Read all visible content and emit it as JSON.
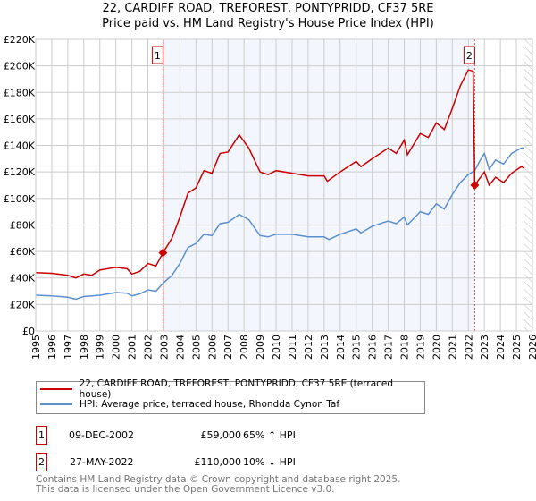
{
  "chart_data": {
    "type": "line",
    "title": "22, CARDIFF ROAD, TREFOREST, PONTYPRIDD, CF37 5RE",
    "subtitle": "Price paid vs. HM Land Registry's House Price Index (HPI)",
    "xlim": [
      1995,
      2026
    ],
    "ylim": [
      0,
      220000
    ],
    "x_ticks": [
      "1995",
      "1996",
      "1997",
      "1998",
      "1999",
      "2000",
      "2001",
      "2002",
      "2003",
      "2004",
      "2005",
      "2006",
      "2007",
      "2008",
      "2009",
      "2010",
      "2011",
      "2012",
      "2013",
      "2014",
      "2015",
      "2016",
      "2017",
      "2018",
      "2019",
      "2020",
      "2021",
      "2022",
      "2023",
      "2024",
      "2025",
      "2026"
    ],
    "y_ticks": [
      "£0",
      "£20K",
      "£40K",
      "£60K",
      "£80K",
      "£100K",
      "£120K",
      "£140K",
      "£160K",
      "£180K",
      "£200K",
      "£220K"
    ],
    "grid": true,
    "shaded_range": [
      2002.94,
      2022.4
    ],
    "hatched_from": 2025.5,
    "series": [
      {
        "name": "22, CARDIFF ROAD, TREFOREST, PONTYPRIDD, CF37 5RE (terraced house)",
        "color": "#cc0000",
        "points": [
          [
            1995,
            44
          ],
          [
            1996,
            43.5
          ],
          [
            1997,
            42
          ],
          [
            1997.5,
            40
          ],
          [
            1998,
            43
          ],
          [
            1998.5,
            42
          ],
          [
            1999,
            46
          ],
          [
            2000,
            48
          ],
          [
            2000.7,
            47
          ],
          [
            2001,
            43
          ],
          [
            2001.5,
            45
          ],
          [
            2002,
            51
          ],
          [
            2002.5,
            49
          ],
          [
            2002.94,
            59
          ],
          [
            2003.5,
            70
          ],
          [
            2004,
            86
          ],
          [
            2004.5,
            104
          ],
          [
            2005,
            108
          ],
          [
            2005.5,
            121
          ],
          [
            2006,
            119
          ],
          [
            2006.5,
            134
          ],
          [
            2007,
            135
          ],
          [
            2007.7,
            148
          ],
          [
            2008.3,
            138
          ],
          [
            2009,
            120
          ],
          [
            2009.5,
            118
          ],
          [
            2010,
            121
          ],
          [
            2011,
            119
          ],
          [
            2012,
            117
          ],
          [
            2013,
            117
          ],
          [
            2013.2,
            113
          ],
          [
            2014,
            120
          ],
          [
            2015,
            128
          ],
          [
            2015.3,
            124
          ],
          [
            2016,
            130
          ],
          [
            2017,
            138
          ],
          [
            2017.5,
            134
          ],
          [
            2018,
            144
          ],
          [
            2018.2,
            133
          ],
          [
            2019,
            149
          ],
          [
            2019.5,
            146
          ],
          [
            2020,
            157
          ],
          [
            2020.5,
            152
          ],
          [
            2021,
            168
          ],
          [
            2021.5,
            185
          ],
          [
            2022,
            197
          ],
          [
            2022.3,
            196
          ],
          [
            2022.4,
            110
          ],
          [
            2023,
            120
          ],
          [
            2023.3,
            110
          ],
          [
            2023.7,
            116
          ],
          [
            2024.2,
            112
          ],
          [
            2024.7,
            119
          ],
          [
            2025.3,
            124
          ],
          [
            2025.5,
            123
          ]
        ]
      },
      {
        "name": "HPI: Average price, terraced house, Rhondda Cynon Taf",
        "color": "#5b8fd0",
        "points": [
          [
            1995,
            27
          ],
          [
            1996,
            26.5
          ],
          [
            1997,
            25.5
          ],
          [
            1997.5,
            24
          ],
          [
            1998,
            26
          ],
          [
            1999,
            27
          ],
          [
            2000,
            29
          ],
          [
            2000.7,
            28.5
          ],
          [
            2001,
            26.5
          ],
          [
            2001.5,
            28
          ],
          [
            2002,
            31
          ],
          [
            2002.5,
            30
          ],
          [
            2002.94,
            36
          ],
          [
            2003.5,
            42
          ],
          [
            2004,
            51
          ],
          [
            2004.5,
            63
          ],
          [
            2005,
            66
          ],
          [
            2005.5,
            73
          ],
          [
            2006,
            72
          ],
          [
            2006.5,
            81
          ],
          [
            2007,
            82
          ],
          [
            2007.7,
            88
          ],
          [
            2008.3,
            84
          ],
          [
            2009,
            72
          ],
          [
            2009.5,
            71
          ],
          [
            2010,
            73
          ],
          [
            2011,
            73
          ],
          [
            2012,
            71
          ],
          [
            2013,
            71
          ],
          [
            2013.3,
            69
          ],
          [
            2014,
            73
          ],
          [
            2015,
            77
          ],
          [
            2015.3,
            74
          ],
          [
            2016,
            79
          ],
          [
            2017,
            83
          ],
          [
            2017.5,
            81
          ],
          [
            2018,
            86
          ],
          [
            2018.2,
            80
          ],
          [
            2019,
            90
          ],
          [
            2019.5,
            88
          ],
          [
            2020,
            96
          ],
          [
            2020.5,
            92
          ],
          [
            2021,
            103
          ],
          [
            2021.5,
            112
          ],
          [
            2022,
            118
          ],
          [
            2022.4,
            121
          ],
          [
            2022.7,
            128
          ],
          [
            2023,
            134
          ],
          [
            2023.3,
            122
          ],
          [
            2023.7,
            129
          ],
          [
            2024.2,
            126
          ],
          [
            2024.7,
            134
          ],
          [
            2025.3,
            138
          ],
          [
            2025.5,
            138
          ]
        ]
      }
    ],
    "y_units": "thousands GBP",
    "sales": [
      {
        "label": "1",
        "year": 2002.94,
        "price": 59
      },
      {
        "label": "2",
        "year": 2022.4,
        "price": 110
      }
    ]
  },
  "legend": {
    "red": "22, CARDIFF ROAD, TREFOREST, PONTYPRIDD, CF37 5RE (terraced house)",
    "blue": "HPI: Average price, terraced house, Rhondda Cynon Taf"
  },
  "transactions": [
    {
      "num": "1",
      "date": "09-DEC-2002",
      "price": "£59,000",
      "hpi": "65% ↑ HPI"
    },
    {
      "num": "2",
      "date": "27-MAY-2022",
      "price": "£110,000",
      "hpi": "10% ↓ HPI"
    }
  ],
  "footer": {
    "line1": "Contains HM Land Registry data © Crown copyright and database right 2025.",
    "line2": "This data is licensed under the Open Government Licence v3.0."
  }
}
